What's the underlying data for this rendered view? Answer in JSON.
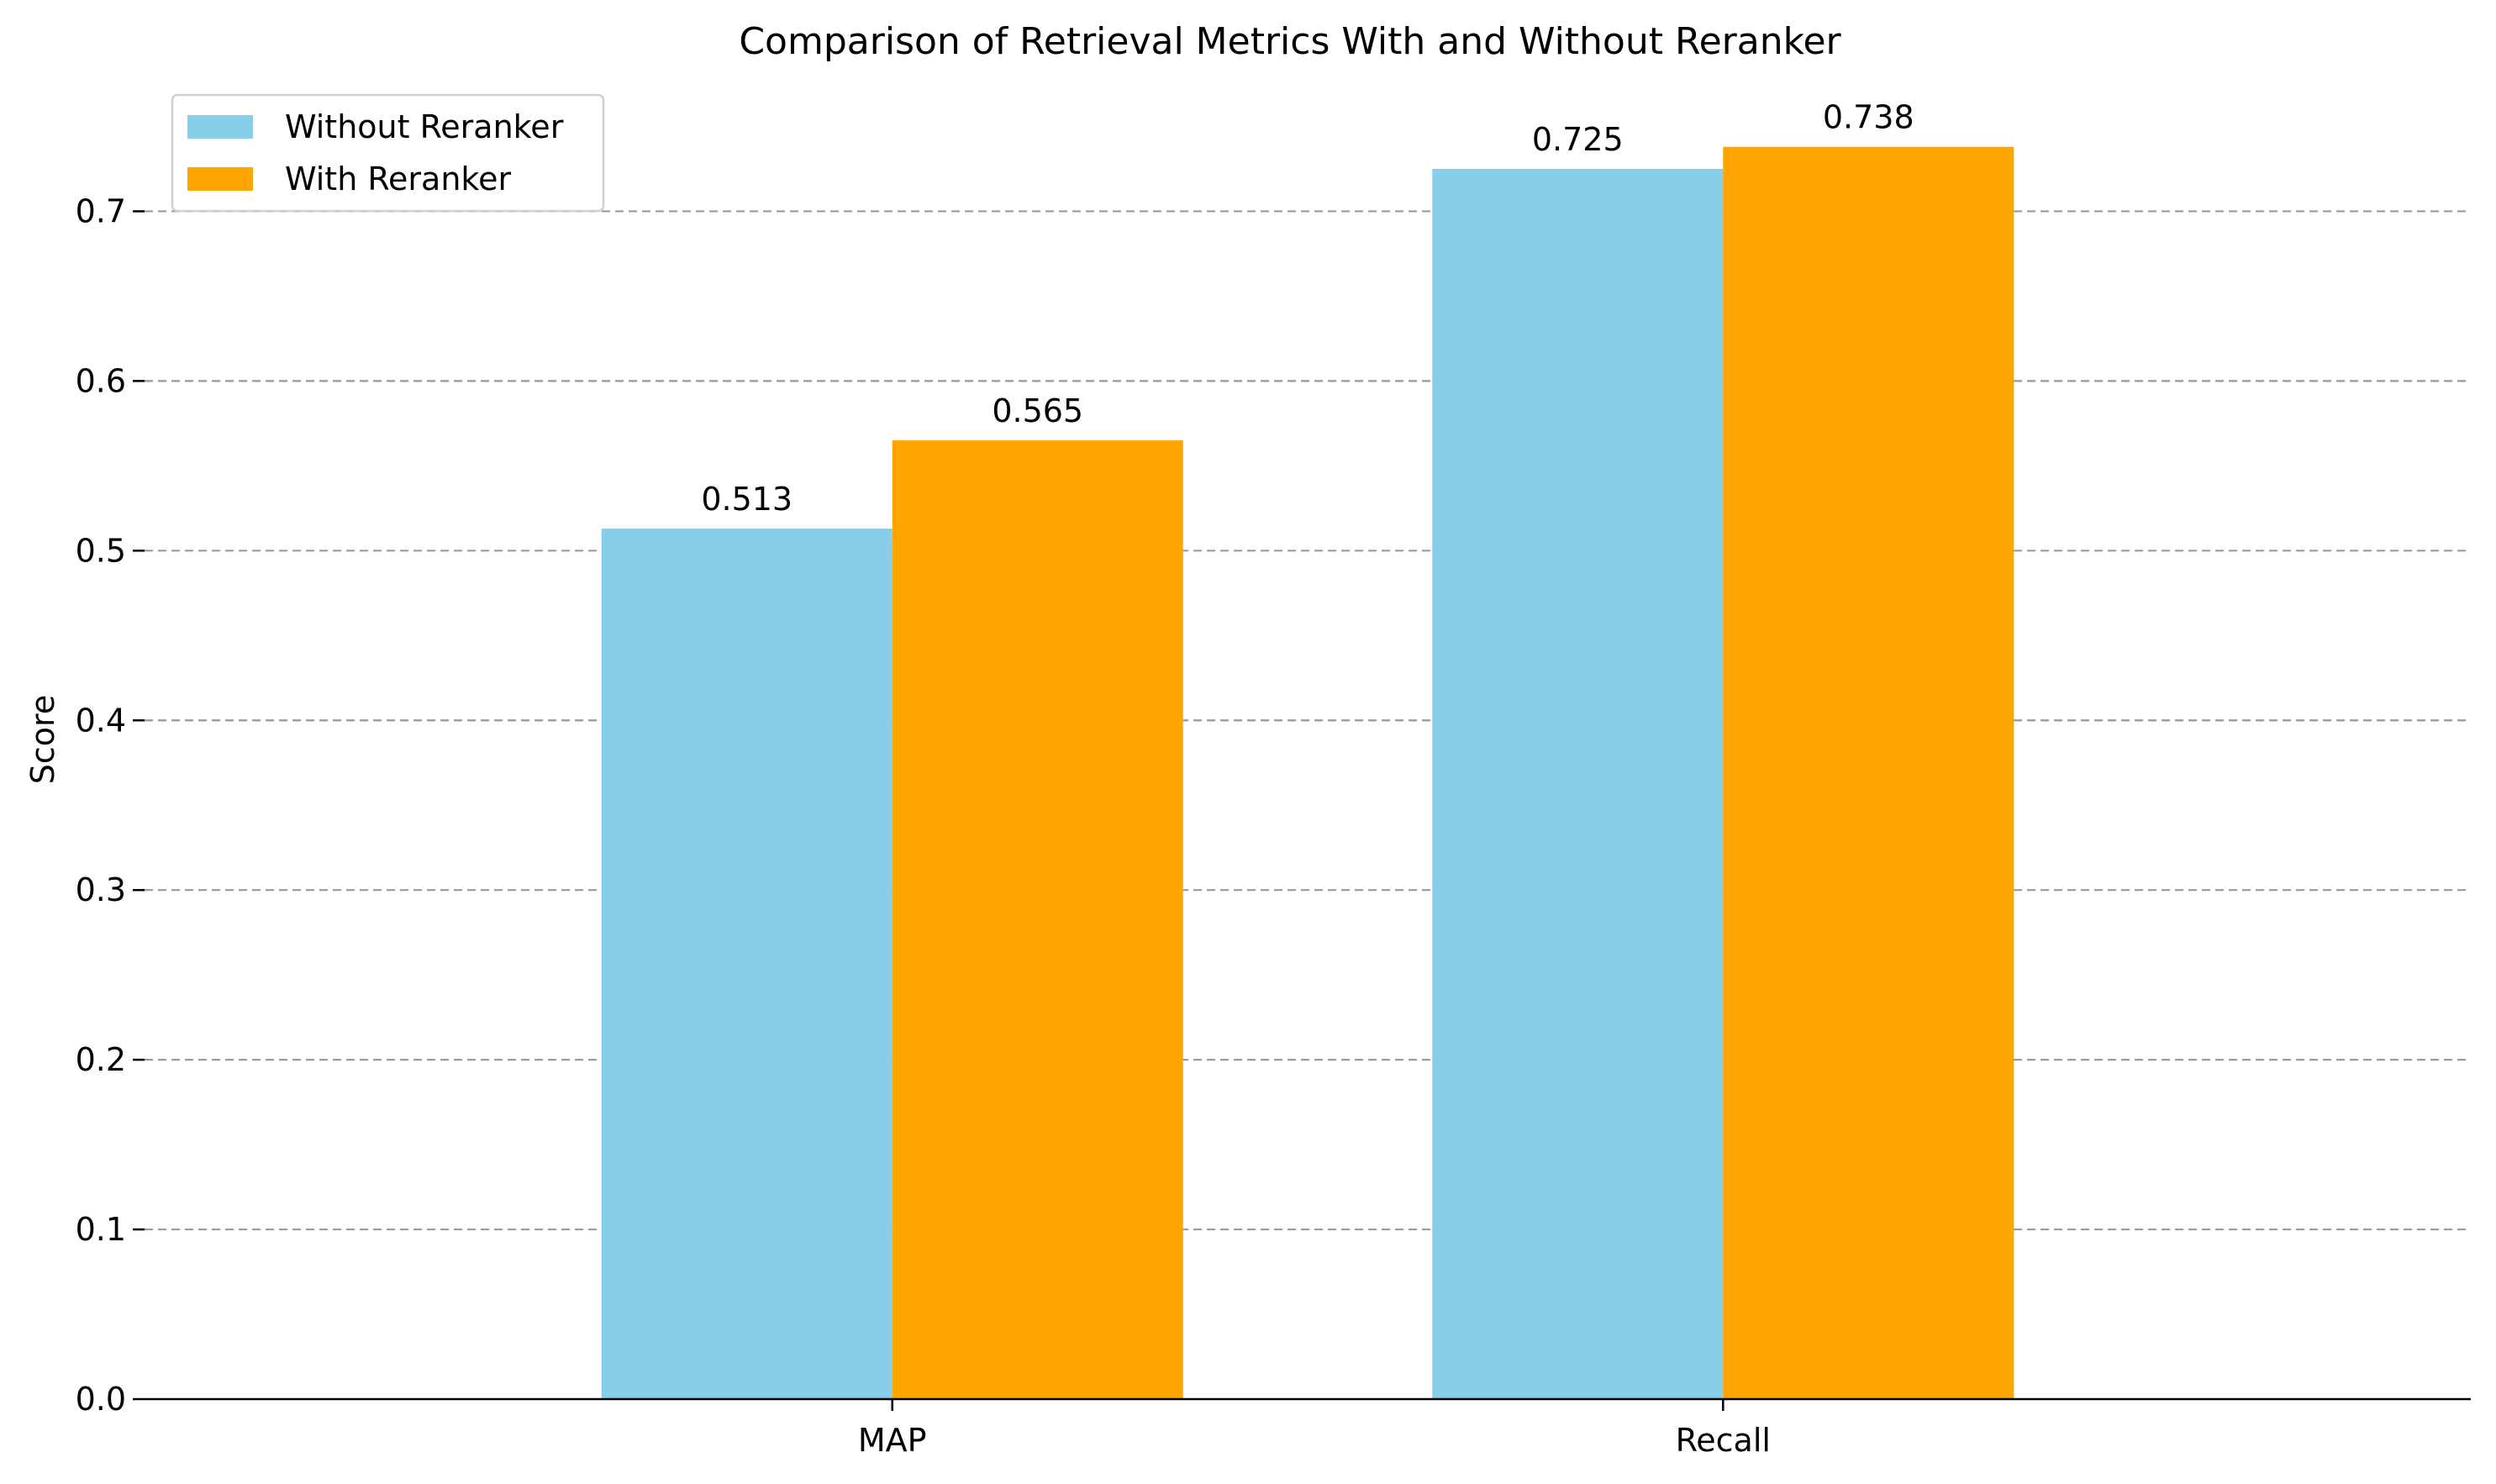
{
  "chart_data": {
    "type": "bar",
    "title": "Comparison of Retrieval Metrics With and Without Reranker",
    "xlabel": "",
    "ylabel": "Score",
    "categories": [
      "MAP",
      "Recall"
    ],
    "series": [
      {
        "name": "Without Reranker",
        "color": "#87CEEB",
        "values": [
          0.513,
          0.725
        ],
        "labels": [
          "0.513",
          "0.725"
        ]
      },
      {
        "name": "With Reranker",
        "color": "#FFA500",
        "values": [
          0.565,
          0.738
        ],
        "labels": [
          "0.565",
          "0.738"
        ]
      }
    ],
    "ylim": [
      0,
      0.775
    ],
    "yticks": [
      0.0,
      0.1,
      0.2,
      0.3,
      0.4,
      0.5,
      0.6,
      0.7
    ],
    "ytick_labels": [
      "0.0",
      "0.1",
      "0.2",
      "0.3",
      "0.4",
      "0.5",
      "0.6",
      "0.7"
    ],
    "grid": {
      "y": true,
      "x": false,
      "style": "dashed",
      "color": "#999999"
    },
    "legend": "top-left"
  }
}
